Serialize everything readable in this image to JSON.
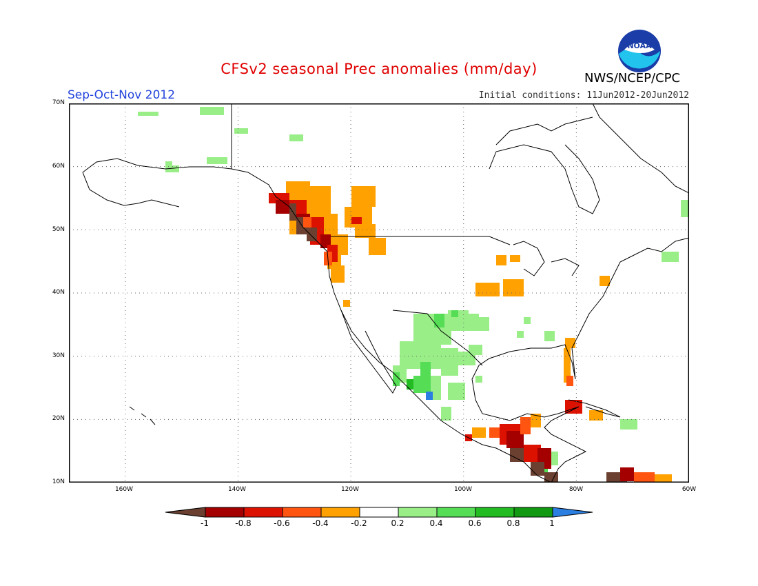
{
  "header": {
    "title": "CFSv2 seasonal Prec anomalies (mm/day)",
    "season": "Sep-Oct-Nov 2012",
    "initial_conditions": "Initial conditions: 11Jun2012-20Jun2012",
    "agency": "NWS/NCEP/CPC",
    "logo_text": "NOAA"
  },
  "axes": {
    "lat_labels": [
      "70N",
      "60N",
      "50N",
      "40N",
      "30N",
      "20N",
      "10N"
    ],
    "lon_labels": [
      "160W",
      "140W",
      "120W",
      "100W",
      "80W",
      "60W"
    ]
  },
  "colorbar": {
    "labels": [
      "-1",
      "-0.8",
      "-0.6",
      "-0.4",
      "-0.2",
      "0.2",
      "0.4",
      "0.6",
      "0.8",
      "1"
    ],
    "colors": {
      "lt_m1": "#6b4030",
      "m1_m08": "#a40000",
      "m08_m06": "#dd1100",
      "m06_m04": "#ff5511",
      "m04_m02": "#ffa100",
      "m02_02": "#ffffff",
      "p02_04": "#99ee88",
      "p04_06": "#55dd55",
      "p06_08": "#22bb22",
      "p08_1": "#119911",
      "gt_1": "#2b7fe0"
    }
  }
}
